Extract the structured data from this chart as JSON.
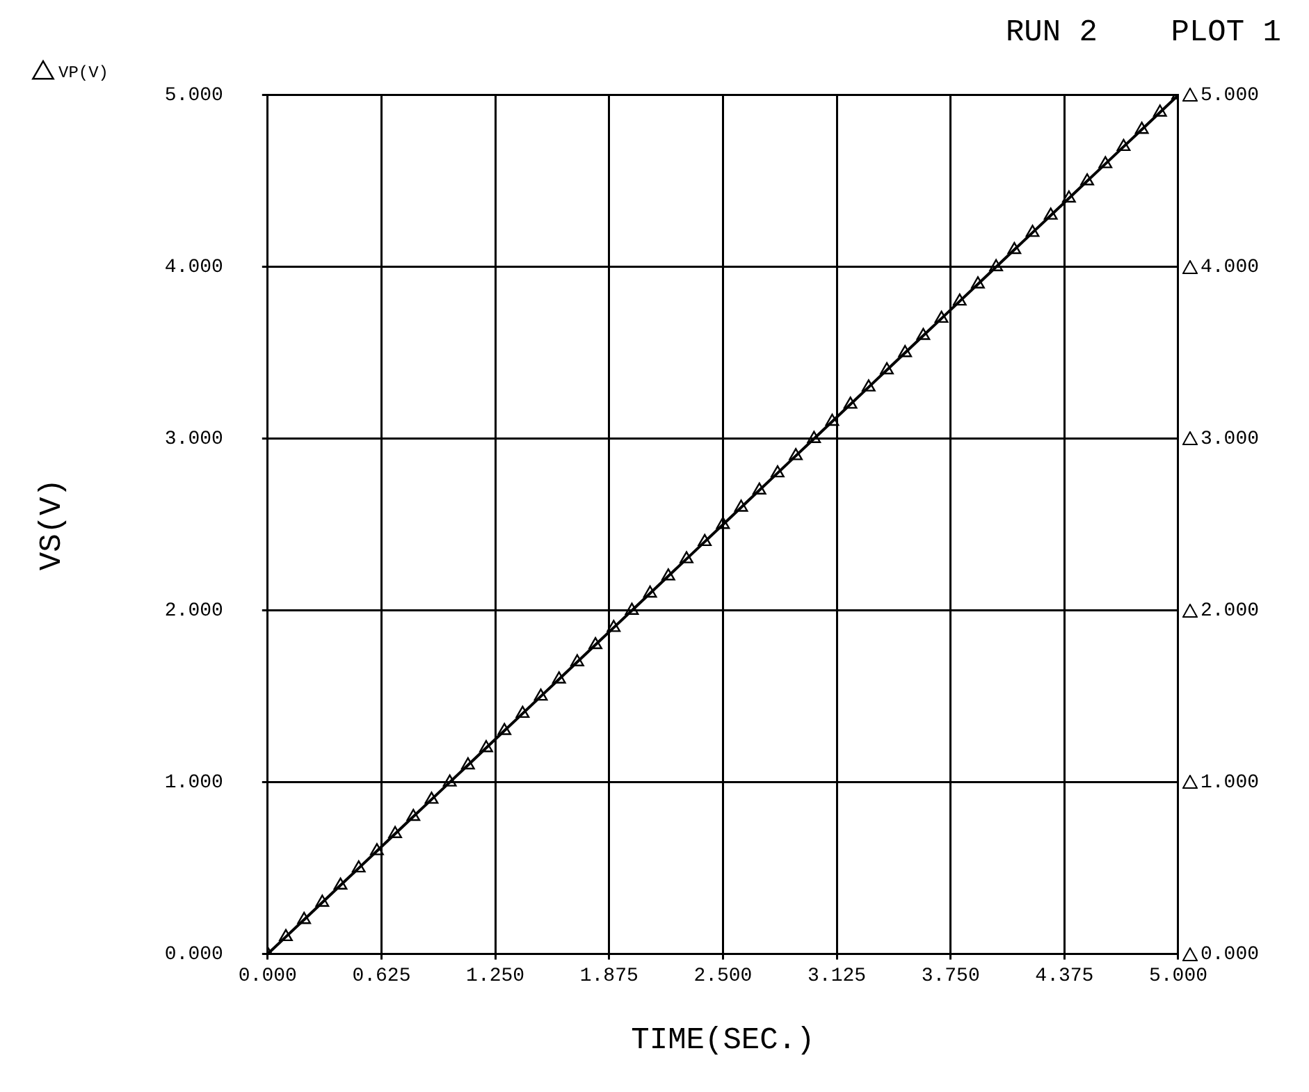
{
  "chart_data": {
    "type": "line",
    "title": "RUN 2    PLOT 1",
    "xlabel": "TIME(SEC.)",
    "ylabel": "VS(V)",
    "x": [
      0,
      0.1,
      0.2,
      0.3,
      0.4,
      0.5,
      0.6,
      0.7,
      0.8,
      0.9,
      1,
      1.1,
      1.2,
      1.3,
      1.4,
      1.5,
      1.6,
      1.7,
      1.8,
      1.9,
      2,
      2.1,
      2.2,
      2.3,
      2.4,
      2.5,
      2.6,
      2.7,
      2.8,
      2.9,
      3,
      3.1,
      3.2,
      3.3,
      3.4,
      3.5,
      3.6,
      3.7,
      3.8,
      3.9,
      4,
      4.1,
      4.2,
      4.3,
      4.4,
      4.5,
      4.6,
      4.7,
      4.8,
      4.9,
      5
    ],
    "series": [
      {
        "name": "VP(V)",
        "color": "#000000",
        "values": [
          0,
          0.1,
          0.2,
          0.3,
          0.4,
          0.5,
          0.6,
          0.7,
          0.8,
          0.9,
          1,
          1.1,
          1.2,
          1.3,
          1.4,
          1.5,
          1.6,
          1.7,
          1.8,
          1.9,
          2,
          2.1,
          2.2,
          2.3,
          2.4,
          2.5,
          2.6,
          2.7,
          2.8,
          2.9,
          3,
          3.1,
          3.2,
          3.3,
          3.4,
          3.5,
          3.6,
          3.7,
          3.8,
          3.9,
          4,
          4.1,
          4.2,
          4.3,
          4.4,
          4.5,
          4.6,
          4.7,
          4.8,
          4.9,
          5
        ]
      }
    ],
    "xlim": [
      0,
      5
    ],
    "xticks": [
      {
        "value": 0,
        "label": "0.000"
      },
      0.625,
      {
        "value": 1.25,
        "label": "1.250"
      },
      1.875,
      {
        "value": 2.5,
        "label": "2.500"
      },
      3.125,
      {
        "value": 3.75,
        "label": "3.750"
      },
      4.375,
      {
        "value": 5,
        "label": "5.000"
      }
    ],
    "ylim": [
      0,
      5
    ],
    "yticks": [
      {
        "value": 0,
        "label": "0.000"
      },
      {
        "value": 1,
        "label": "1.000"
      },
      {
        "value": 2,
        "label": "2.000"
      },
      {
        "value": 3,
        "label": "3.000"
      },
      {
        "value": 4,
        "label": "4.000"
      },
      {
        "value": 5,
        "label": "5.000"
      }
    ],
    "y2lim": [
      0,
      5
    ],
    "y2ticks": [
      {
        "value": 0,
        "label": "0.000"
      },
      {
        "value": 1,
        "label": "1.000"
      },
      {
        "value": 2,
        "label": "2.000"
      },
      {
        "value": 3,
        "label": "3.000"
      },
      {
        "value": 4,
        "label": "4.000"
      },
      {
        "value": 5,
        "label": "5.000"
      }
    ],
    "grid": true,
    "legend": "top left",
    "marker": "triangle",
    "line_style": "solid"
  }
}
